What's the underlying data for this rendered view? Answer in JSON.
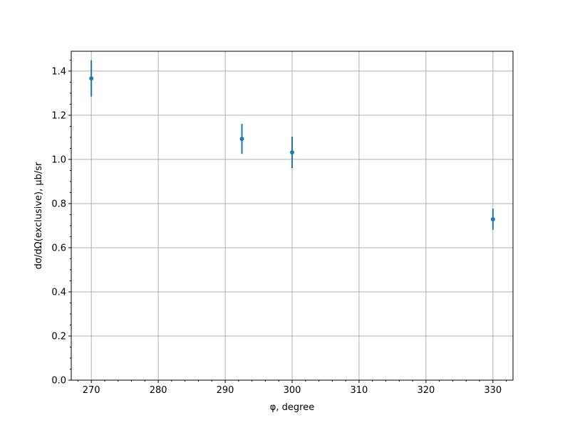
{
  "chart_data": {
    "type": "scatter",
    "title": "",
    "xlabel": "φ, degree",
    "ylabel": "dσ/dΩ(exclusive), μb/sr",
    "xlim": [
      267,
      333
    ],
    "ylim": [
      0,
      1.49
    ],
    "grid": true,
    "x_ticks": [
      270,
      280,
      290,
      300,
      310,
      320,
      330
    ],
    "x_tick_labels": [
      "270",
      "280",
      "290",
      "300",
      "310",
      "320",
      "330"
    ],
    "y_ticks": [
      0,
      0.2,
      0.4,
      0.6,
      0.8,
      1.0,
      1.2,
      1.4
    ],
    "y_tick_labels": [
      "0.0",
      "0.2",
      "0.4",
      "0.6",
      "0.8",
      "1.0",
      "1.2",
      "1.4"
    ],
    "series": [
      {
        "x": [
          270,
          292.5,
          300,
          330
        ],
        "y": [
          1.367,
          1.093,
          1.032,
          0.729
        ],
        "yerr": [
          0.082,
          0.068,
          0.071,
          0.048
        ],
        "color": "#1f77b4"
      }
    ]
  }
}
